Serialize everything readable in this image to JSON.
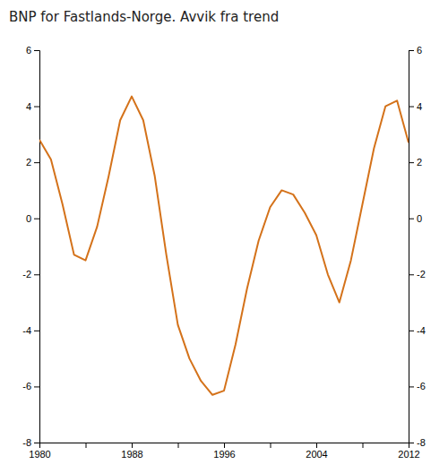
{
  "chart_data": {
    "type": "line",
    "title": "BNP for Fastlands-Norge. Avvik fra trend",
    "color": "#D4721A",
    "x": [
      1980,
      1981,
      1982,
      1983,
      1984,
      1985,
      1986,
      1987,
      1988,
      1989,
      1990,
      1991,
      1992,
      1993,
      1994,
      1995,
      1996,
      1997,
      1998,
      1999,
      2000,
      2001,
      2002,
      2003,
      2004,
      2005,
      2006,
      2007,
      2008,
      2009,
      2010,
      2011,
      2012
    ],
    "values": [
      2.8,
      2.1,
      0.5,
      -1.3,
      -1.5,
      -0.3,
      1.5,
      3.5,
      4.35,
      3.5,
      1.5,
      -1.3,
      -3.8,
      -5.0,
      -5.8,
      -6.3,
      -6.15,
      -4.5,
      -2.5,
      -0.8,
      0.4,
      1.0,
      0.85,
      0.2,
      -0.6,
      -2.0,
      -3.0,
      -1.5,
      0.5,
      2.5,
      4.0,
      4.2,
      2.7
    ],
    "xlim": [
      1980,
      2012
    ],
    "xticks": [
      1980,
      {
        "value": 1984,
        "label": null
      },
      1988,
      {
        "value": 1992,
        "label": null
      },
      1996,
      {
        "value": 2000,
        "label": null
      },
      2004,
      {
        "value": 2008,
        "label": null
      },
      2012
    ],
    "ylim": [
      -8,
      6
    ],
    "yticks": [
      -8,
      -6,
      -4,
      -2,
      0,
      2,
      4,
      6
    ],
    "y2lim": [
      -8,
      6
    ],
    "y2ticks": [
      -8,
      -6,
      -4,
      -2,
      0,
      2,
      4,
      6
    ],
    "grid": false
  }
}
